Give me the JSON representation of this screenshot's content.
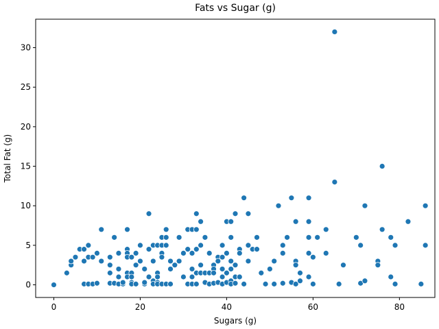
{
  "chart_data": {
    "type": "scatter",
    "title": "Fats vs Sugar (g)",
    "xlabel": "Sugars (g)",
    "ylabel": "Total Fat (g)",
    "xlim": [
      -4.2,
      88.2
    ],
    "ylim": [
      -1.6,
      33.6
    ],
    "xticks": [
      0,
      20,
      40,
      60,
      80
    ],
    "yticks": [
      0,
      5,
      10,
      15,
      20,
      25,
      30
    ],
    "grid": false,
    "point_color": "#1f77b4",
    "points": [
      [
        0,
        0
      ],
      [
        3,
        1.5
      ],
      [
        4,
        2.5
      ],
      [
        4,
        3
      ],
      [
        5,
        3.5
      ],
      [
        6,
        4.5
      ],
      [
        7,
        4.5
      ],
      [
        7,
        3
      ],
      [
        7,
        0.1
      ],
      [
        8,
        5
      ],
      [
        8,
        3.5
      ],
      [
        8,
        0.1
      ],
      [
        9,
        3.5
      ],
      [
        9,
        0.1
      ],
      [
        10,
        4
      ],
      [
        10,
        0.2
      ],
      [
        11,
        7
      ],
      [
        11,
        3
      ],
      [
        13,
        3.5
      ],
      [
        13,
        2.5
      ],
      [
        13,
        1.5
      ],
      [
        13,
        0.2
      ],
      [
        14,
        6
      ],
      [
        14,
        0.2
      ],
      [
        15,
        4
      ],
      [
        15,
        2
      ],
      [
        15,
        1
      ],
      [
        15,
        0.1
      ],
      [
        16,
        0.1
      ],
      [
        16,
        0.3
      ],
      [
        17,
        7
      ],
      [
        17,
        4.5
      ],
      [
        17,
        4
      ],
      [
        17,
        3.5
      ],
      [
        17,
        1.5
      ],
      [
        17,
        1
      ],
      [
        18,
        3.5
      ],
      [
        18,
        1.5
      ],
      [
        18,
        1
      ],
      [
        18,
        0.3
      ],
      [
        18,
        0.1
      ],
      [
        19,
        4
      ],
      [
        19,
        2.5
      ],
      [
        19,
        0.1
      ],
      [
        20,
        5
      ],
      [
        20,
        3
      ],
      [
        21,
        2
      ],
      [
        21,
        0.1
      ],
      [
        21,
        0.3
      ],
      [
        22,
        9
      ],
      [
        22,
        4.5
      ],
      [
        22,
        1
      ],
      [
        23,
        5
      ],
      [
        23,
        3
      ],
      [
        23,
        0.5
      ],
      [
        23,
        0.1
      ],
      [
        24,
        5
      ],
      [
        24,
        1.5
      ],
      [
        24,
        1
      ],
      [
        24,
        0.3
      ],
      [
        24,
        0.1
      ],
      [
        25,
        6
      ],
      [
        25,
        5
      ],
      [
        25,
        4
      ],
      [
        25,
        3.5
      ],
      [
        25,
        0.1
      ],
      [
        26,
        7
      ],
      [
        26,
        6
      ],
      [
        26,
        5
      ],
      [
        26,
        0.1
      ],
      [
        27,
        3
      ],
      [
        27,
        2
      ],
      [
        27,
        0.1
      ],
      [
        28,
        2.5
      ],
      [
        29,
        6
      ],
      [
        29,
        3
      ],
      [
        30,
        4
      ],
      [
        30,
        1
      ],
      [
        31,
        7
      ],
      [
        31,
        4.5
      ],
      [
        31,
        0.1
      ],
      [
        32,
        7
      ],
      [
        32,
        4
      ],
      [
        32,
        2
      ],
      [
        32,
        1
      ],
      [
        32,
        0.1
      ],
      [
        33,
        9
      ],
      [
        33,
        7
      ],
      [
        33,
        4.5
      ],
      [
        33,
        1.5
      ],
      [
        33,
        0.1
      ],
      [
        34,
        8
      ],
      [
        34,
        5
      ],
      [
        34,
        2.5
      ],
      [
        34,
        1.5
      ],
      [
        35,
        6
      ],
      [
        35,
        1.5
      ],
      [
        35,
        0.3
      ],
      [
        36,
        4
      ],
      [
        36,
        1.5
      ],
      [
        36,
        0.1
      ],
      [
        37,
        2.5
      ],
      [
        37,
        2
      ],
      [
        37,
        1.5
      ],
      [
        37,
        0.2
      ],
      [
        38,
        3.5
      ],
      [
        38,
        3
      ],
      [
        38,
        0.3
      ],
      [
        39,
        5
      ],
      [
        39,
        3.5
      ],
      [
        39,
        2
      ],
      [
        39,
        1
      ],
      [
        39,
        0.1
      ],
      [
        40,
        8
      ],
      [
        40,
        4
      ],
      [
        40,
        1.5
      ],
      [
        40,
        0.3
      ],
      [
        41,
        8
      ],
      [
        41,
        6
      ],
      [
        41,
        3
      ],
      [
        41,
        2
      ],
      [
        41,
        0.5
      ],
      [
        41,
        0.1
      ],
      [
        42,
        9
      ],
      [
        42,
        2.5
      ],
      [
        42,
        1
      ],
      [
        42,
        0.2
      ],
      [
        43,
        4.5
      ],
      [
        43,
        4
      ],
      [
        43,
        1
      ],
      [
        44,
        11
      ],
      [
        44,
        0.1
      ],
      [
        45,
        9
      ],
      [
        45,
        5
      ],
      [
        45,
        3
      ],
      [
        46,
        4.5
      ],
      [
        47,
        6
      ],
      [
        47,
        4.5
      ],
      [
        48,
        1.5
      ],
      [
        49,
        0.1
      ],
      [
        50,
        2
      ],
      [
        51,
        3
      ],
      [
        51,
        0.1
      ],
      [
        52,
        10
      ],
      [
        53,
        5
      ],
      [
        53,
        4
      ],
      [
        53,
        0.2
      ],
      [
        54,
        6
      ],
      [
        55,
        11
      ],
      [
        55,
        0.3
      ],
      [
        56,
        8
      ],
      [
        56,
        3
      ],
      [
        56,
        2.5
      ],
      [
        56,
        0.1
      ],
      [
        57,
        1.5
      ],
      [
        57,
        0.5
      ],
      [
        59,
        11
      ],
      [
        59,
        8
      ],
      [
        59,
        6
      ],
      [
        59,
        4
      ],
      [
        59,
        1
      ],
      [
        60,
        3.5
      ],
      [
        60,
        0.1
      ],
      [
        61,
        6
      ],
      [
        63,
        7
      ],
      [
        63,
        4
      ],
      [
        65,
        32
      ],
      [
        65,
        13
      ],
      [
        66,
        0.1
      ],
      [
        67,
        2.5
      ],
      [
        70,
        6
      ],
      [
        71,
        5
      ],
      [
        71,
        0.2
      ],
      [
        72,
        10
      ],
      [
        72,
        0.5
      ],
      [
        75,
        3
      ],
      [
        75,
        2.5
      ],
      [
        76,
        15
      ],
      [
        76,
        7
      ],
      [
        78,
        6
      ],
      [
        78,
        1
      ],
      [
        79,
        5
      ],
      [
        79,
        0.1
      ],
      [
        82,
        8
      ],
      [
        85,
        0.1
      ],
      [
        86,
        10
      ],
      [
        86,
        5
      ]
    ]
  }
}
